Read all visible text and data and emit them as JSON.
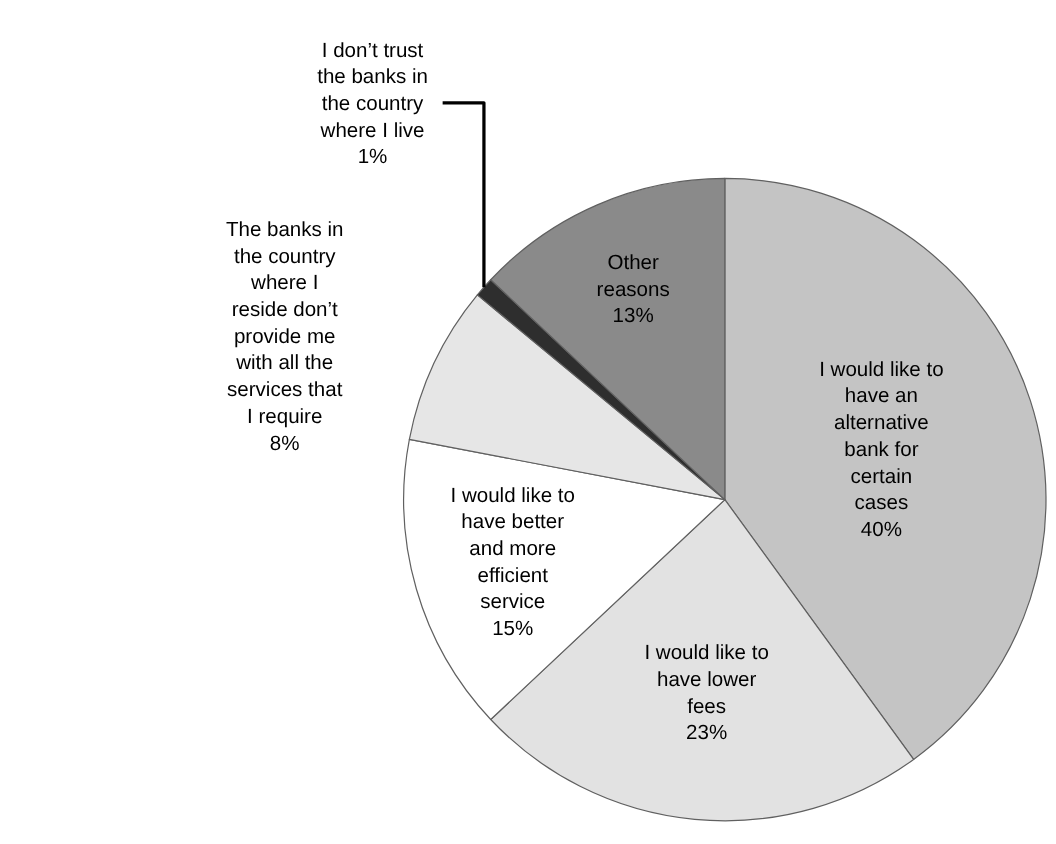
{
  "chart_data": {
    "type": "pie",
    "categories": [
      "I would like to\nhave an\nalternative\nbank for\ncertain\ncases",
      "I would like to\nhave lower\nfees",
      "I would like to\nhave better\nand more\nefficient\nservice",
      "The banks in\nthe country\nwhere I\nreside don’t\nprovide me\nwith all the\nservices that\nI require",
      "I don’t trust\nthe banks in\nthe country\nwhere I live",
      "Other\nreasons"
    ],
    "values": [
      40,
      23,
      15,
      8,
      1,
      13
    ],
    "value_labels": [
      "40%",
      "23%",
      "15%",
      "8%",
      "1%",
      "13%"
    ],
    "colors": [
      "#c4c4c4",
      "#e2e2e2",
      "#ffffff",
      "#e6e6e6",
      "#2e2e2e",
      "#8a8a8a"
    ],
    "legend": false
  }
}
